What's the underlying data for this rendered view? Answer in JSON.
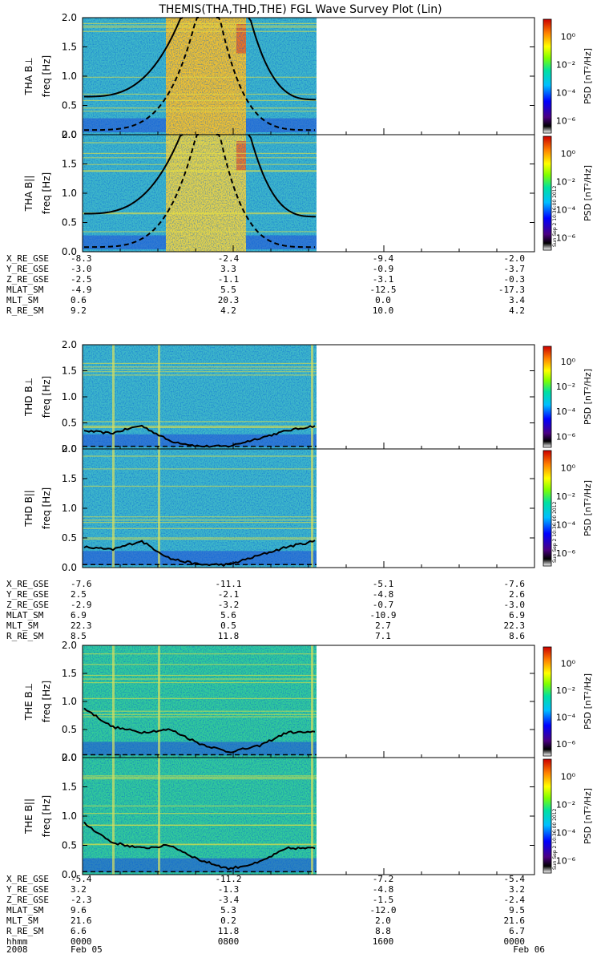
{
  "title": "THEMIS(THA,THD,THE) FGL Wave Survey Plot (Lin)",
  "freq_unit": "freq [Hz]",
  "psd_label": "PSD [nT²/Hz]",
  "colorbar_ticks": [
    "10⁰",
    "10⁻²",
    "10⁻⁴",
    "10⁻⁶"
  ],
  "timestamp": "Sun Sep 2 10:36:00 2012",
  "freq_ticks": [
    "2.0",
    "1.5",
    "1.0",
    "0.5",
    "0.0"
  ],
  "chart_data": [
    {
      "type": "heatmap",
      "probe": "THA",
      "panels": [
        {
          "label": "THA B⊥",
          "ylim": [
            0,
            2.0
          ]
        },
        {
          "label": "THA B||",
          "ylim": [
            0,
            2.0
          ]
        }
      ],
      "ylabel": "freq [Hz]",
      "colorbar": "PSD [nT²/Hz]",
      "ephemeris": [
        {
          "name": "X_RE_GSE",
          "values": [
            "-8.3",
            "-2.4",
            "-9.4",
            "-2.0"
          ]
        },
        {
          "name": "Y_RE_GSE",
          "values": [
            "-3.0",
            "3.3",
            "-0.9",
            "-3.7"
          ]
        },
        {
          "name": "Z_RE_GSE",
          "values": [
            "-2.5",
            "-1.1",
            "-3.1",
            "-0.3"
          ]
        },
        {
          "name": "MLAT_SM",
          "values": [
            "-4.9",
            "5.5",
            "-12.5",
            "-17.3"
          ]
        },
        {
          "name": "MLT_SM",
          "values": [
            "0.6",
            "20.3",
            "0.0",
            "3.4"
          ]
        },
        {
          "name": "R_RE_SM",
          "values": [
            "9.2",
            "4.2",
            "10.0",
            "4.2"
          ]
        }
      ]
    },
    {
      "type": "heatmap",
      "probe": "THD",
      "panels": [
        {
          "label": "THD B⊥",
          "ylim": [
            0,
            2.0
          ]
        },
        {
          "label": "THD B||",
          "ylim": [
            0,
            2.0
          ]
        }
      ],
      "ylabel": "freq [Hz]",
      "colorbar": "PSD [nT²/Hz]",
      "ephemeris": [
        {
          "name": "X_RE_GSE",
          "values": [
            "-7.6",
            "-11.1",
            "-5.1",
            "-7.6"
          ]
        },
        {
          "name": "Y_RE_GSE",
          "values": [
            "2.5",
            "-2.1",
            "-4.8",
            "2.6"
          ]
        },
        {
          "name": "Z_RE_GSE",
          "values": [
            "-2.9",
            "-3.2",
            "-0.7",
            "-3.0"
          ]
        },
        {
          "name": "MLAT_SM",
          "values": [
            "6.9",
            "5.6",
            "-10.9",
            "6.9"
          ]
        },
        {
          "name": "MLT_SM",
          "values": [
            "22.3",
            "0.5",
            "2.7",
            "22.3"
          ]
        },
        {
          "name": "R_RE_SM",
          "values": [
            "8.5",
            "11.8",
            "7.1",
            "8.6"
          ]
        }
      ]
    },
    {
      "type": "heatmap",
      "probe": "THE",
      "panels": [
        {
          "label": "THE B⊥",
          "ylim": [
            0,
            2.0
          ]
        },
        {
          "label": "THE B||",
          "ylim": [
            0,
            2.0
          ]
        }
      ],
      "ylabel": "freq [Hz]",
      "colorbar": "PSD [nT²/Hz]",
      "ephemeris": [
        {
          "name": "X_RE_GSE",
          "values": [
            "-5.4",
            "-11.2",
            "-7.2",
            "-5.4"
          ]
        },
        {
          "name": "Y_RE_GSE",
          "values": [
            "3.2",
            "-1.3",
            "-4.8",
            "3.2"
          ]
        },
        {
          "name": "Z_RE_GSE",
          "values": [
            "-2.3",
            "-3.4",
            "-1.5",
            "-2.4"
          ]
        },
        {
          "name": "MLAT_SM",
          "values": [
            "9.6",
            "5.3",
            "-12.0",
            "9.5"
          ]
        },
        {
          "name": "MLT_SM",
          "values": [
            "21.6",
            "0.2",
            "2.0",
            "21.6"
          ]
        },
        {
          "name": "R_RE_SM",
          "values": [
            "6.6",
            "11.8",
            "8.8",
            "6.7"
          ]
        },
        {
          "name": "hhmm",
          "values": [
            "0000",
            "0800",
            "1600",
            "0000"
          ]
        }
      ]
    }
  ],
  "time_axis": {
    "year": "2008",
    "start_date": "Feb 05",
    "end_date": "Feb 06"
  }
}
